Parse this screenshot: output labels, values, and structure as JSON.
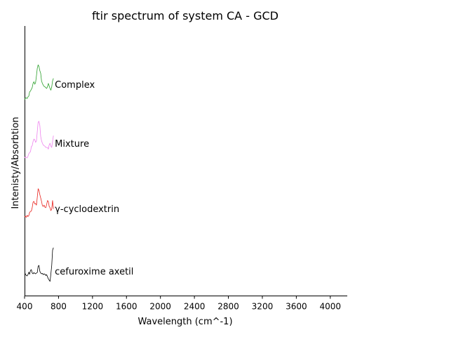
{
  "chart_data": {
    "type": "line",
    "title": "ftir spectrum of system CA - GCD",
    "xlabel": "Wavelength (cm^-1)",
    "ylabel": "Intenisty/Absorbtion",
    "xlim": [
      400,
      4200
    ],
    "xticks": [
      400,
      800,
      1200,
      1600,
      2000,
      2400,
      2800,
      3200,
      3600,
      4000
    ],
    "y_ticks_shown": false,
    "grid": false,
    "legend": "none (labels placed beside traces)",
    "series": [
      {
        "name": "cefuroxime axetil",
        "color": "#000000",
        "offset": 0,
        "x": [
          400,
          410,
          420,
          430,
          440,
          450,
          460,
          470,
          480,
          490,
          500,
          510,
          520,
          530,
          540,
          550,
          560,
          570,
          580,
          590,
          600,
          610,
          620,
          630,
          640,
          650,
          660,
          670,
          680,
          690,
          700,
          710,
          720,
          730,
          740
        ],
        "y": [
          0.07,
          0.1,
          0.06,
          0.05,
          0.08,
          0.14,
          0.09,
          0.18,
          0.2,
          0.12,
          0.1,
          0.13,
          0.11,
          0.1,
          0.12,
          0.13,
          0.28,
          0.3,
          0.16,
          0.12,
          0.1,
          0.11,
          0.08,
          0.1,
          0.09,
          0.06,
          0.08,
          0.03,
          -0.02,
          -0.05,
          -0.08,
          0.1,
          0.3,
          0.66,
          0.72
        ]
      },
      {
        "name": "γ-cyclodextrin",
        "color": "#e8231e",
        "offset": 1,
        "x": [
          400,
          410,
          420,
          430,
          440,
          450,
          460,
          470,
          480,
          490,
          500,
          510,
          520,
          530,
          540,
          550,
          560,
          570,
          580,
          590,
          600,
          610,
          620,
          630,
          640,
          650,
          660,
          670,
          680,
          690,
          700,
          710,
          720,
          730,
          740
        ],
        "y": [
          0.05,
          0.07,
          0.04,
          0.09,
          0.06,
          0.08,
          0.16,
          0.18,
          0.19,
          0.27,
          0.4,
          0.42,
          0.36,
          0.37,
          0.33,
          0.52,
          0.72,
          0.68,
          0.58,
          0.5,
          0.42,
          0.32,
          0.3,
          0.33,
          0.28,
          0.27,
          0.34,
          0.44,
          0.42,
          0.3,
          0.27,
          0.2,
          0.24,
          0.44,
          0.24
        ]
      },
      {
        "name": "Mixture",
        "color": "#ee82ee",
        "offset": 2,
        "x": [
          400,
          410,
          420,
          430,
          440,
          450,
          460,
          470,
          480,
          490,
          500,
          510,
          520,
          530,
          540,
          550,
          560,
          570,
          580,
          590,
          600,
          610,
          620,
          630,
          640,
          650,
          660,
          670,
          680,
          690,
          700,
          710,
          720,
          730,
          740
        ],
        "y": [
          0.05,
          0.08,
          0.06,
          0.05,
          0.09,
          0.15,
          0.18,
          0.2,
          0.32,
          0.34,
          0.44,
          0.5,
          0.48,
          0.42,
          0.46,
          0.68,
          0.9,
          0.92,
          0.82,
          0.56,
          0.46,
          0.4,
          0.36,
          0.34,
          0.33,
          0.3,
          0.3,
          0.3,
          0.26,
          0.36,
          0.4,
          0.33,
          0.3,
          0.44,
          0.58
        ]
      },
      {
        "name": "Complex",
        "color": "#2ca02c",
        "offset": 3,
        "x": [
          400,
          410,
          420,
          430,
          440,
          450,
          460,
          470,
          480,
          490,
          500,
          510,
          520,
          530,
          540,
          550,
          560,
          570,
          580,
          590,
          600,
          610,
          620,
          630,
          640,
          650,
          660,
          670,
          680,
          690,
          700,
          710,
          720,
          730,
          740
        ],
        "y": [
          0.03,
          0.07,
          0.08,
          0.06,
          0.1,
          0.12,
          0.22,
          0.24,
          0.28,
          0.32,
          0.42,
          0.46,
          0.4,
          0.44,
          0.6,
          0.78,
          0.86,
          0.82,
          0.72,
          0.66,
          0.48,
          0.42,
          0.38,
          0.35,
          0.34,
          0.32,
          0.3,
          0.34,
          0.42,
          0.36,
          0.3,
          0.26,
          0.34,
          0.48,
          0.54
        ]
      }
    ]
  }
}
